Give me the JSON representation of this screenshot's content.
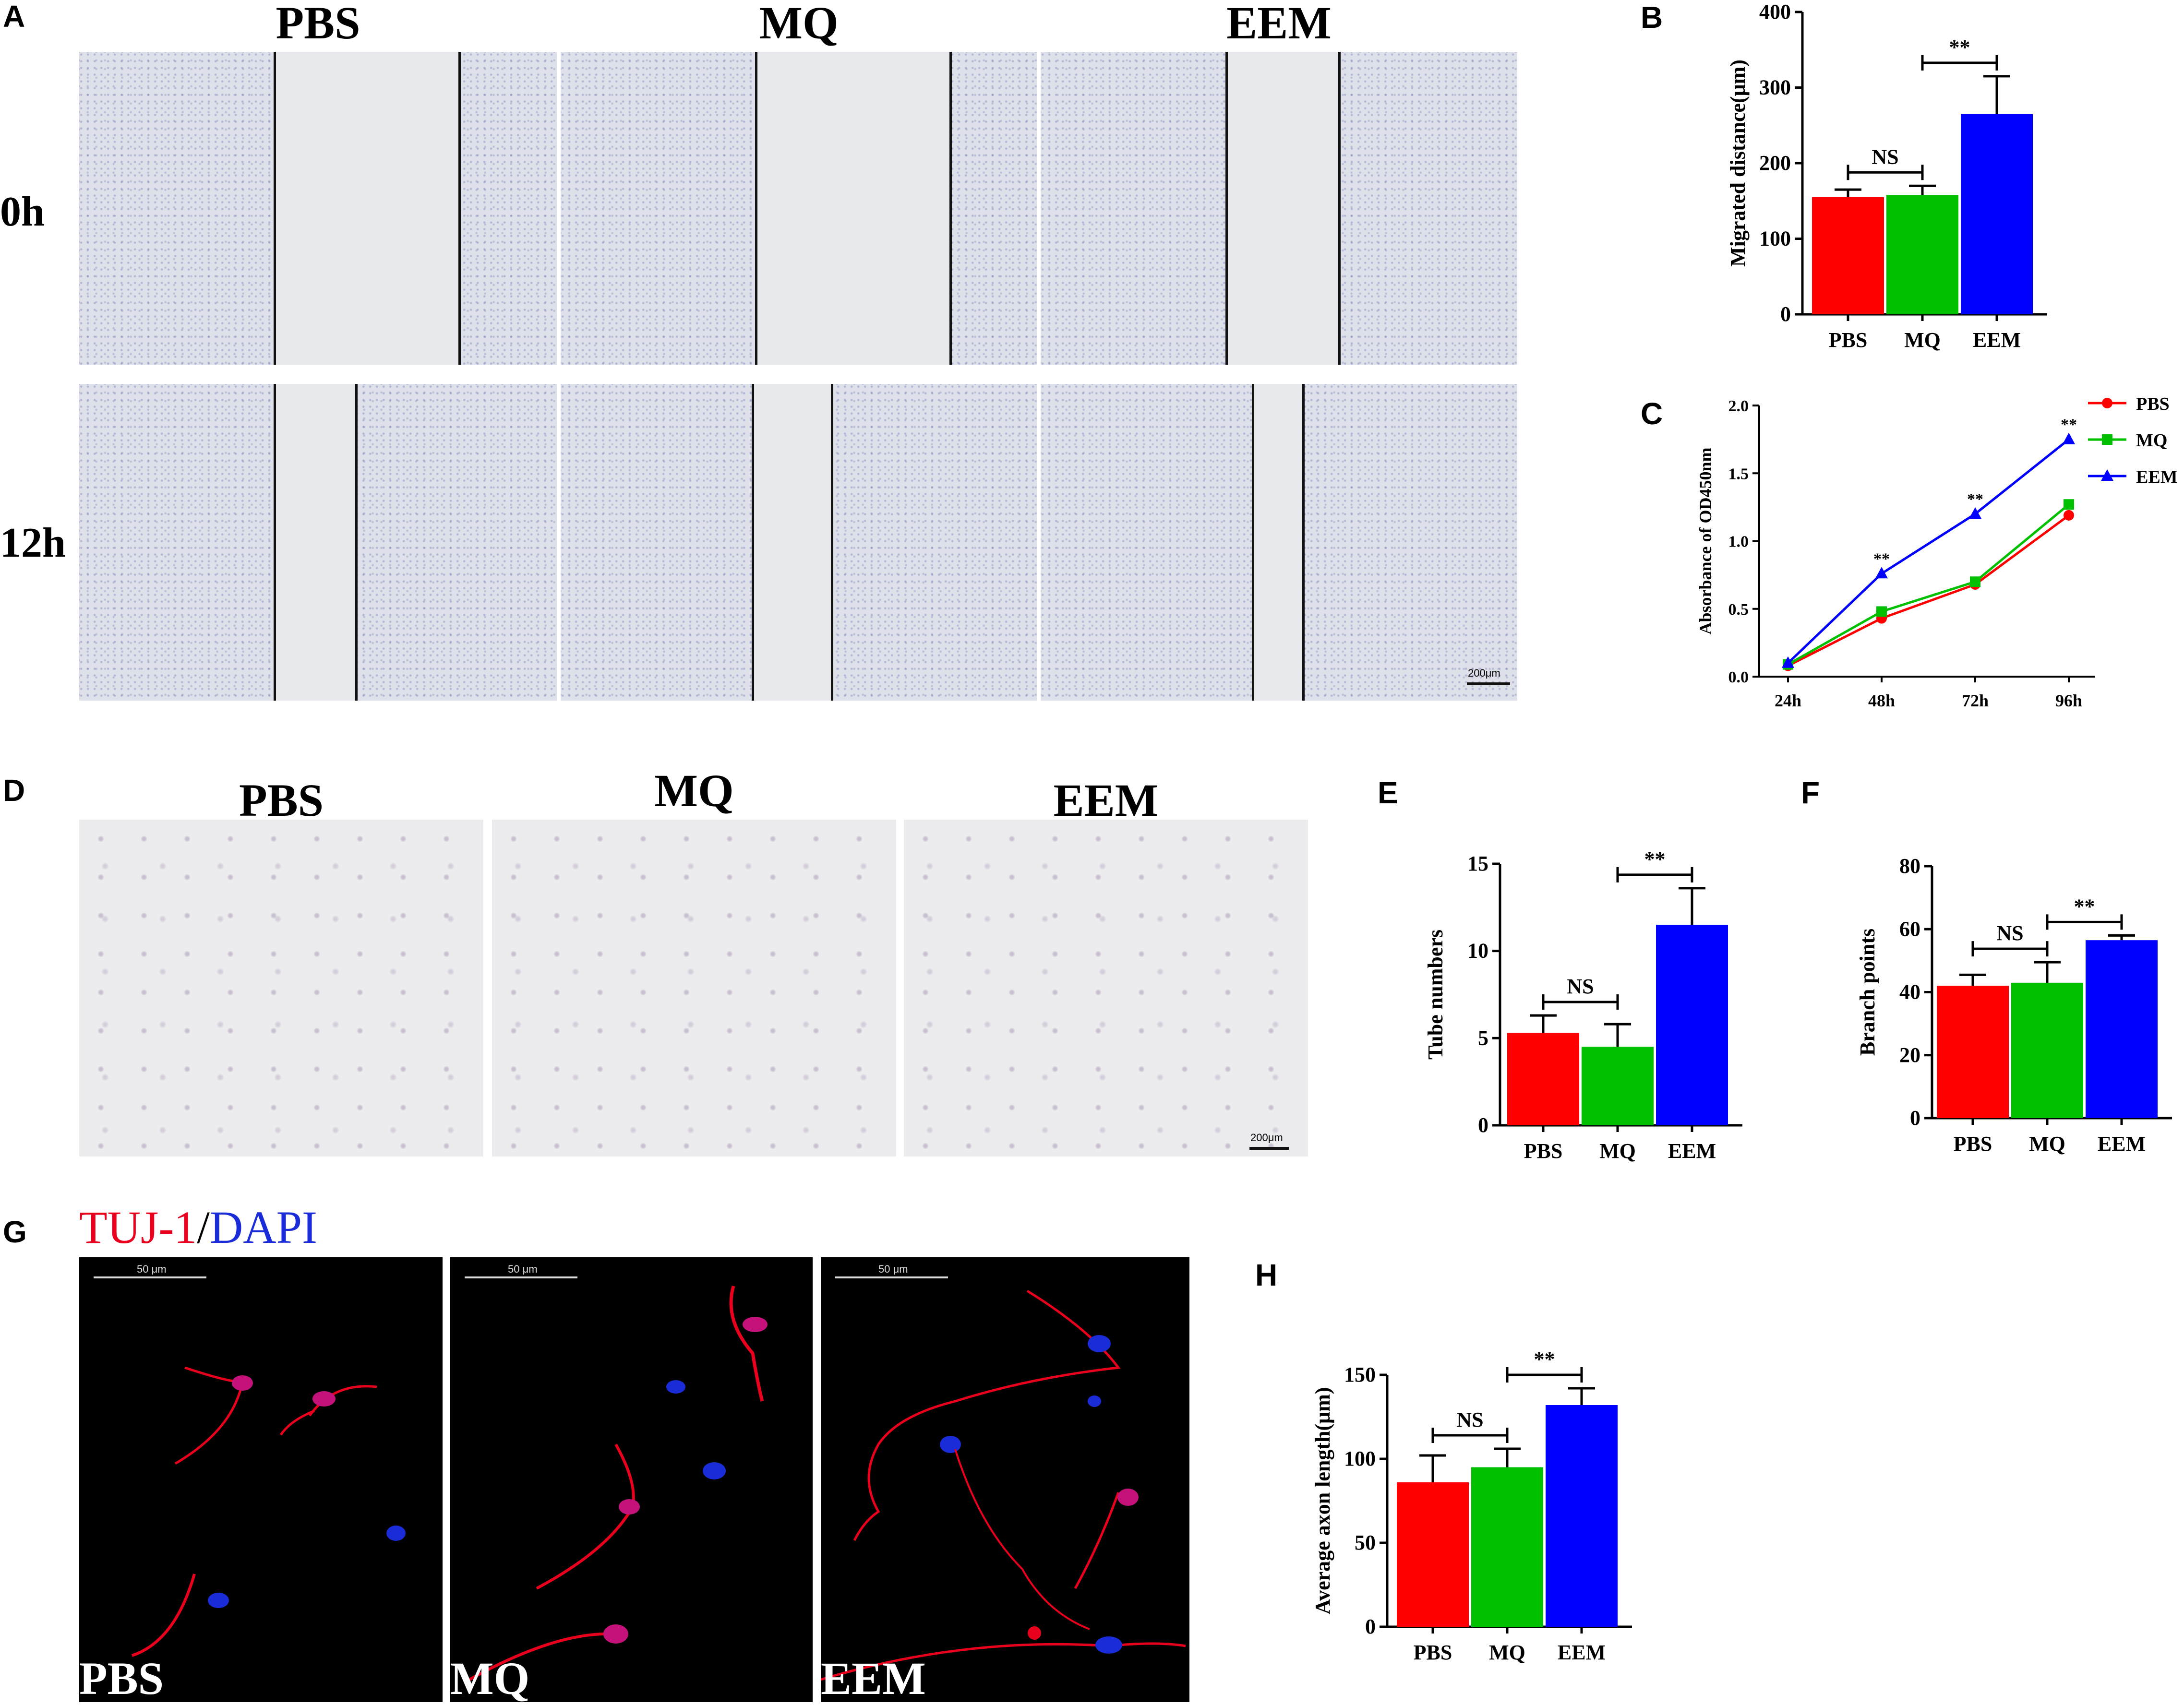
{
  "panel_letters": {
    "A": "A",
    "B": "B",
    "C": "C",
    "D": "D",
    "E": "E",
    "F": "F",
    "G": "G",
    "H": "H"
  },
  "panel_a": {
    "columns": [
      "PBS",
      "MQ",
      "EEM"
    ],
    "rows": [
      "0h",
      "12h"
    ],
    "scale_label": "200μm"
  },
  "panel_d": {
    "columns": [
      "PBS",
      "MQ",
      "EEM"
    ],
    "scale_label": "200μm"
  },
  "panel_g": {
    "stain_red": "TUJ-1",
    "stain_sep": "/",
    "stain_blue": "DAPI",
    "groups": [
      "PBS",
      "MQ",
      "EEM"
    ],
    "scale_label": "50 μm",
    "red_color": "#e8001c",
    "blue_color": "#1a2bd8"
  },
  "colors": {
    "PBS": "#ff0000",
    "MQ": "#00c000",
    "EEM": "#0000ff"
  },
  "chart_data": [
    {
      "id": "B",
      "type": "bar",
      "categories": [
        "PBS",
        "MQ",
        "EEM"
      ],
      "values": [
        155,
        158,
        265
      ],
      "errors": [
        10,
        12,
        50
      ],
      "ylabel": "Migrated distance(μm)",
      "ylim": [
        0,
        400
      ],
      "yticks": [
        0,
        100,
        200,
        300,
        400
      ],
      "annotations": [
        {
          "from": 0,
          "to": 1,
          "text": "NS"
        },
        {
          "from": 1,
          "to": 2,
          "text": "**"
        }
      ]
    },
    {
      "id": "C",
      "type": "line",
      "x": [
        "24h",
        "48h",
        "72h",
        "96h"
      ],
      "series": [
        {
          "name": "PBS",
          "values": [
            0.08,
            0.43,
            0.68,
            1.19
          ],
          "marker": "circle"
        },
        {
          "name": "MQ",
          "values": [
            0.09,
            0.48,
            0.7,
            1.27
          ],
          "marker": "square"
        },
        {
          "name": "EEM",
          "values": [
            0.1,
            0.76,
            1.2,
            1.75
          ],
          "marker": "triangle"
        }
      ],
      "ylabel": "Absorbance of OD450nm",
      "ylim": [
        0,
        2.0
      ],
      "yticks": [
        "0.0",
        "0.5",
        "1.0",
        "1.5",
        "2.0"
      ],
      "annotations": [
        {
          "x": 1,
          "text": "**"
        },
        {
          "x": 2,
          "text": "**"
        },
        {
          "x": 3,
          "text": "**"
        }
      ],
      "legend": "top-right"
    },
    {
      "id": "E",
      "type": "bar",
      "categories": [
        "PBS",
        "MQ",
        "EEM"
      ],
      "values": [
        5.3,
        4.5,
        11.5
      ],
      "errors": [
        1.0,
        1.3,
        2.1
      ],
      "ylabel": "Tube numbers",
      "ylim": [
        0,
        15
      ],
      "yticks": [
        0,
        5,
        10,
        15
      ],
      "annotations": [
        {
          "from": 0,
          "to": 1,
          "text": "NS"
        },
        {
          "from": 1,
          "to": 2,
          "text": "**"
        }
      ]
    },
    {
      "id": "F",
      "type": "bar",
      "categories": [
        "PBS",
        "MQ",
        "EEM"
      ],
      "values": [
        42,
        43,
        56.5
      ],
      "errors": [
        3.5,
        6.5,
        1.5
      ],
      "ylabel": "Branch points",
      "ylim": [
        0,
        80
      ],
      "yticks": [
        0,
        20,
        40,
        60,
        80
      ],
      "annotations": [
        {
          "from": 0,
          "to": 1,
          "text": "NS"
        },
        {
          "from": 1,
          "to": 2,
          "text": "**"
        }
      ]
    },
    {
      "id": "H",
      "type": "bar",
      "categories": [
        "PBS",
        "MQ",
        "EEM"
      ],
      "values": [
        86,
        95,
        132
      ],
      "errors": [
        16,
        11,
        10
      ],
      "ylabel": "Average axon length(μm)",
      "ylim": [
        0,
        150
      ],
      "yticks": [
        0,
        50,
        100,
        150
      ],
      "annotations": [
        {
          "from": 0,
          "to": 1,
          "text": "NS"
        },
        {
          "from": 1,
          "to": 2,
          "text": "**"
        }
      ]
    }
  ]
}
